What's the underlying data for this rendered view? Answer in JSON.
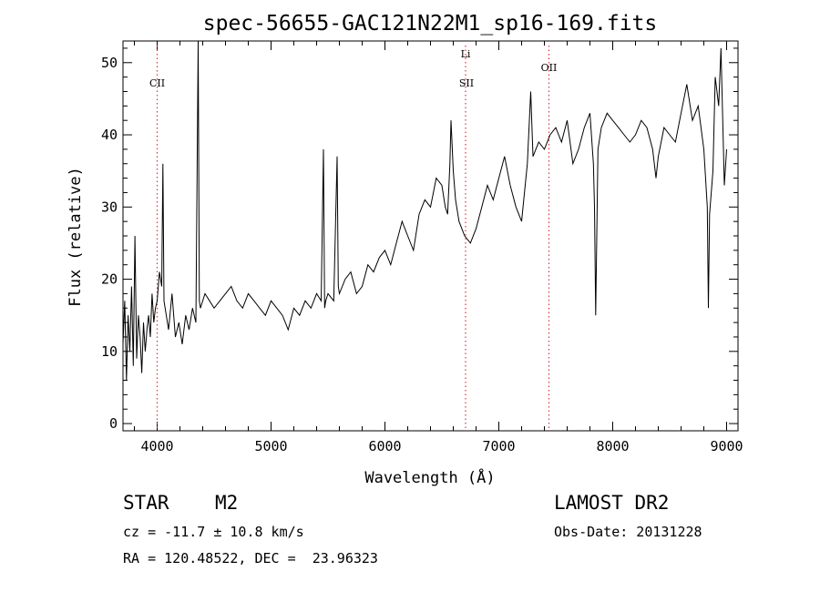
{
  "chart_data": {
    "type": "line",
    "title": "spec-56655-GAC121N22M1_sp16-169.fits",
    "xlabel": "Wavelength (Å)",
    "ylabel": "Flux (relative)",
    "xlim": [
      3700,
      9100
    ],
    "ylim": [
      -1,
      53
    ],
    "xticks": [
      4000,
      5000,
      6000,
      7000,
      8000,
      9000
    ],
    "yticks": [
      0,
      10,
      20,
      30,
      40,
      50
    ],
    "grid": false,
    "line_color": "#000000",
    "marker_line_color": "#e0404f",
    "line_markers": [
      {
        "label": "CII",
        "x": 4000
      },
      {
        "label": "Li",
        "x": 6708
      },
      {
        "label": "SII",
        "x": 6716
      },
      {
        "label": "OII",
        "x": 7440
      }
    ],
    "series": [
      {
        "x": [
          3700,
          3715,
          3730,
          3745,
          3760,
          3775,
          3790,
          3805,
          3820,
          3835,
          3850,
          3865,
          3880,
          3895,
          3910,
          3925,
          3940,
          3955,
          3970,
          3985,
          4000,
          4020,
          4040,
          4050,
          4060,
          4080,
          4100,
          4130,
          4160,
          4190,
          4220,
          4250,
          4280,
          4310,
          4340,
          4360,
          4370,
          4380,
          4420,
          4460,
          4500,
          4550,
          4600,
          4650,
          4700,
          4750,
          4800,
          4850,
          4900,
          4950,
          5000,
          5050,
          5100,
          5150,
          5200,
          5250,
          5300,
          5350,
          5400,
          5440,
          5460,
          5470,
          5480,
          5500,
          5550,
          5580,
          5590,
          5600,
          5650,
          5700,
          5750,
          5800,
          5850,
          5900,
          5950,
          6000,
          6050,
          6100,
          6150,
          6200,
          6250,
          6300,
          6350,
          6400,
          6450,
          6500,
          6530,
          6550,
          6570,
          6580,
          6600,
          6620,
          6650,
          6700,
          6750,
          6800,
          6850,
          6900,
          6950,
          7000,
          7050,
          7100,
          7150,
          7200,
          7250,
          7280,
          7300,
          7350,
          7400,
          7450,
          7500,
          7550,
          7600,
          7650,
          7700,
          7750,
          7800,
          7830,
          7840,
          7850,
          7870,
          7900,
          7950,
          8000,
          8050,
          8100,
          8150,
          8200,
          8250,
          8300,
          8350,
          8380,
          8400,
          8450,
          8500,
          8550,
          8600,
          8650,
          8700,
          8750,
          8800,
          8830,
          8840,
          8850,
          8880,
          8900,
          8930,
          8950,
          8980,
          9000
        ],
        "y": [
          11,
          17,
          6,
          15,
          10,
          19,
          8,
          26,
          9,
          15,
          12,
          7,
          14,
          10,
          13,
          15,
          12,
          18,
          14,
          16,
          17,
          21,
          19,
          36,
          17,
          15,
          13,
          18,
          12,
          14,
          11,
          15,
          13,
          16,
          14,
          53,
          17,
          16,
          18,
          17,
          16,
          17,
          18,
          19,
          17,
          16,
          18,
          17,
          16,
          15,
          17,
          16,
          15,
          13,
          16,
          15,
          17,
          16,
          18,
          17,
          38,
          16,
          17,
          18,
          17,
          37,
          19,
          18,
          20,
          21,
          18,
          19,
          22,
          21,
          23,
          24,
          22,
          25,
          28,
          26,
          24,
          29,
          31,
          30,
          34,
          33,
          30,
          29,
          36,
          42,
          35,
          31,
          28,
          26,
          25,
          27,
          30,
          33,
          31,
          34,
          37,
          33,
          30,
          28,
          36,
          46,
          37,
          39,
          38,
          40,
          41,
          39,
          42,
          36,
          38,
          41,
          43,
          36,
          30,
          15,
          38,
          41,
          43,
          42,
          41,
          40,
          39,
          40,
          42,
          41,
          38,
          34,
          37,
          41,
          40,
          39,
          43,
          47,
          42,
          44,
          38,
          30,
          16,
          29,
          35,
          48,
          44,
          52,
          33,
          38
        ]
      }
    ],
    "info": {
      "object_class": "STAR",
      "subclass": "M2",
      "survey": "LAMOST DR2",
      "cz": "cz = -11.7 ± 10.8 km/s",
      "obs_date": "Obs-Date: 20131228",
      "coords": "RA = 120.48522, DEC =  23.96323"
    }
  }
}
